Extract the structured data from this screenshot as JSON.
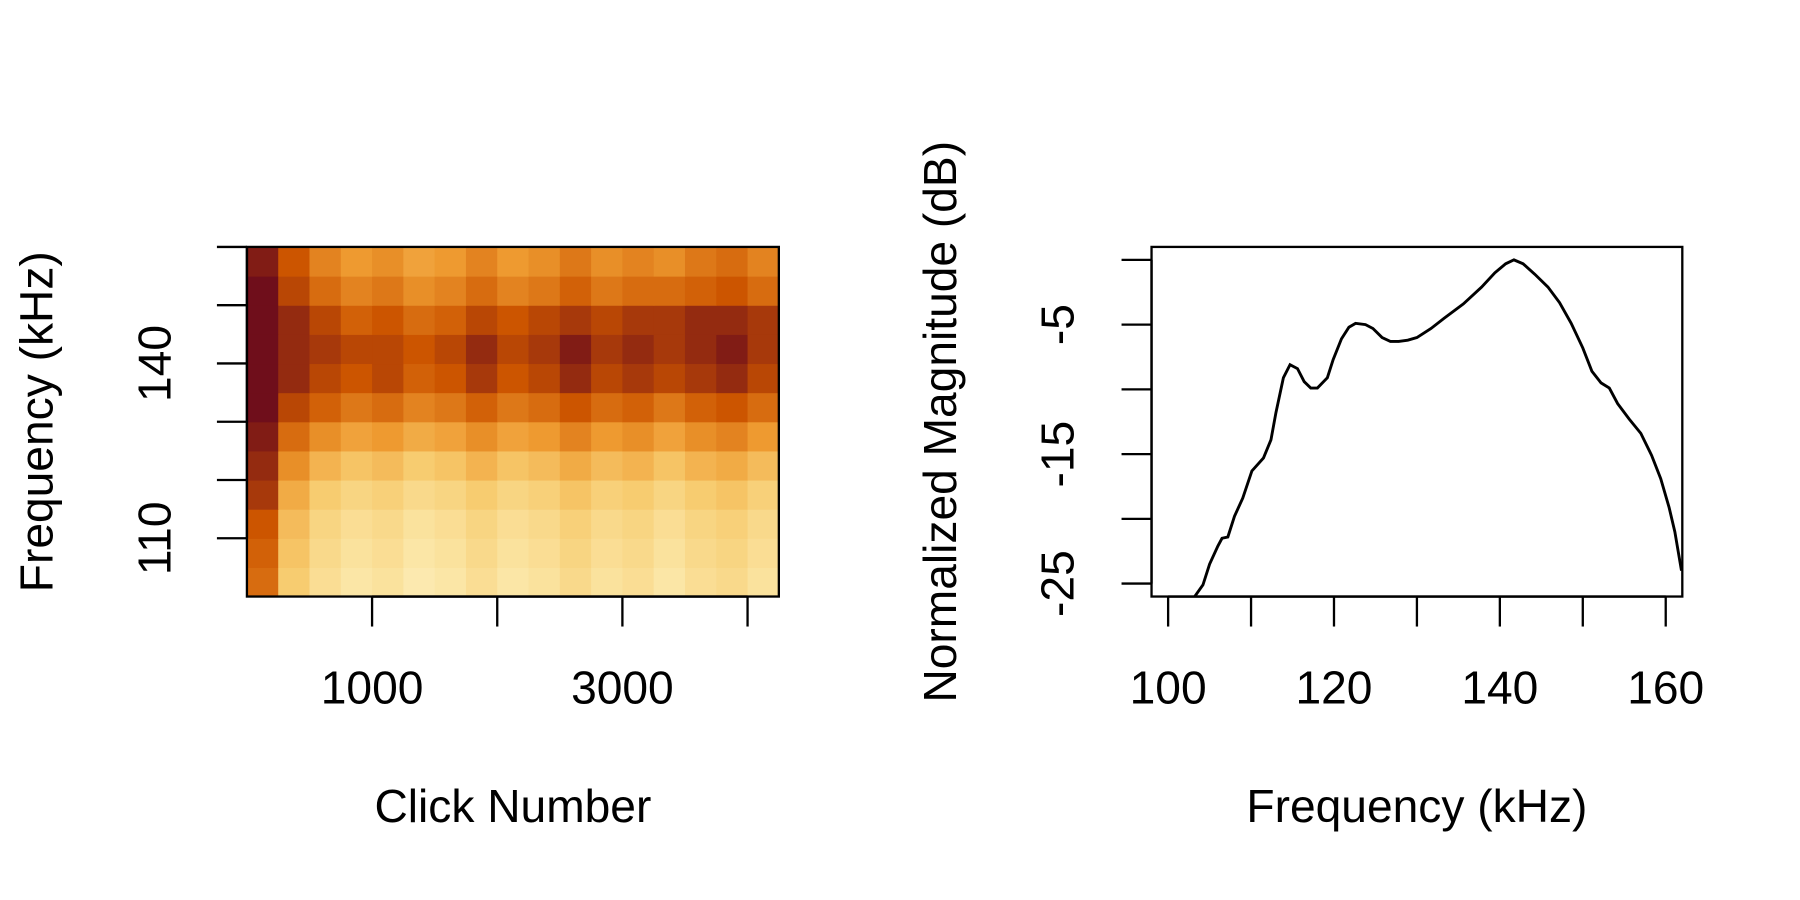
{
  "chart_data": [
    {
      "type": "heatmap",
      "xlabel": "Click Number",
      "ylabel": "Frequency (kHz)",
      "xbins": [
        0,
        250,
        500,
        750,
        1000,
        1250,
        1500,
        1750,
        2000,
        2250,
        2500,
        2750,
        3000,
        3250,
        3500,
        3750,
        4000,
        4250
      ],
      "ybins": [
        100,
        105,
        110,
        115,
        120,
        125,
        130,
        135,
        140,
        145,
        150,
        155,
        160
      ],
      "z": [
        [
          -8,
          -18,
          -22,
          -24,
          -23,
          -25,
          -24,
          -22,
          -24,
          -23,
          -21,
          -23,
          -22,
          -24,
          -22,
          -21,
          -23
        ],
        [
          -7,
          -17,
          -21,
          -23,
          -22,
          -24,
          -23,
          -21,
          -23,
          -22,
          -20,
          -22,
          -21,
          -23,
          -21,
          -20,
          -22
        ],
        [
          -6,
          -16,
          -20,
          -22,
          -21,
          -23,
          -22,
          -20,
          -22,
          -21,
          -19,
          -21,
          -20,
          -22,
          -20,
          -19,
          -21
        ],
        [
          -4,
          -14,
          -18,
          -20,
          -19,
          -21,
          -20,
          -18,
          -20,
          -19,
          -17,
          -19,
          -18,
          -20,
          -18,
          -17,
          -19
        ],
        [
          -3,
          -11,
          -15,
          -17,
          -16,
          -18,
          -17,
          -15,
          -17,
          -16,
          -14,
          -16,
          -15,
          -17,
          -15,
          -14,
          -16
        ],
        [
          -2,
          -8,
          -11,
          -13,
          -12,
          -14,
          -13,
          -11,
          -13,
          -12,
          -10,
          -12,
          -11,
          -13,
          -11,
          -10,
          -12
        ],
        [
          -1,
          -5,
          -7,
          -9,
          -8,
          -10,
          -9,
          -7,
          -9,
          -8,
          -6,
          -8,
          -7,
          -9,
          -7,
          -6,
          -8
        ],
        [
          -1,
          -3,
          -5,
          -6,
          -5,
          -7,
          -6,
          -4,
          -6,
          -5,
          -3,
          -5,
          -4,
          -5,
          -4,
          -3,
          -5
        ],
        [
          -1,
          -3,
          -4,
          -5,
          -5,
          -6,
          -5,
          -3,
          -5,
          -4,
          -2,
          -4,
          -3,
          -4,
          -3,
          -2,
          -4
        ],
        [
          -1,
          -3,
          -5,
          -7,
          -6,
          -8,
          -7,
          -5,
          -6,
          -5,
          -4,
          -5,
          -4,
          -4,
          -3,
          -3,
          -4
        ],
        [
          -1,
          -5,
          -8,
          -10,
          -9,
          -11,
          -10,
          -8,
          -10,
          -9,
          -7,
          -9,
          -8,
          -8,
          -7,
          -6,
          -8
        ],
        [
          -2,
          -6,
          -10,
          -12,
          -11,
          -13,
          -12,
          -10,
          -12,
          -11,
          -9,
          -11,
          -10,
          -11,
          -9,
          -8,
          -10
        ]
      ],
      "zlim": [
        -30,
        0
      ],
      "colorscale": [
        "#fff8dc",
        "#fbe6a6",
        "#f7cc70",
        "#ee9a30",
        "#cc5500",
        "#5c0020"
      ],
      "xlim": [
        0,
        4250
      ],
      "ylim": [
        100,
        160
      ],
      "xticks": [
        1000,
        {
          "value": 2000,
          "label": null
        },
        3000,
        {
          "value": 4000,
          "label": null
        }
      ],
      "yticks": [
        110,
        {
          "value": 120,
          "label": null
        },
        {
          "value": 130,
          "label": null
        },
        140,
        {
          "value": 150,
          "label": null
        },
        {
          "value": 160,
          "label": null
        }
      ]
    },
    {
      "type": "line",
      "xlabel": "Frequency (kHz)",
      "ylabel": "Normalized Magnitude (dB)",
      "x": [
        103.2,
        104.2,
        105,
        106,
        106.5,
        107.2,
        108,
        109,
        110.1,
        111.5,
        112.4,
        113,
        113.9,
        114.7,
        115.6,
        116.4,
        117.2,
        118,
        119.2,
        119.9,
        120.9,
        121.8,
        122.6,
        123.8,
        124.7,
        125.8,
        126.8,
        127.8,
        128.9,
        130,
        131.7,
        133.3,
        135.6,
        137.8,
        139.4,
        140.7,
        141.7,
        142.8,
        144.2,
        145.8,
        147.2,
        148.6,
        150,
        151.1,
        152.2,
        153.2,
        154.2,
        155.6,
        157,
        158.3,
        159.4,
        160.4,
        161.1,
        161.9
      ],
      "values": [
        -26,
        -25.1,
        -23.5,
        -22.1,
        -21.5,
        -21.4,
        -19.8,
        -18.4,
        -16.3,
        -15.3,
        -13.9,
        -11.8,
        -9.1,
        -8.1,
        -8.4,
        -9.4,
        -9.9,
        -9.9,
        -9.1,
        -7.7,
        -6.1,
        -5.2,
        -4.9,
        -5.0,
        -5.3,
        -6.0,
        -6.3,
        -6.3,
        -6.2,
        -6.0,
        -5.3,
        -4.5,
        -3.4,
        -2.1,
        -1.0,
        -0.3,
        0,
        -0.3,
        -1.1,
        -2.1,
        -3.3,
        -4.9,
        -6.8,
        -8.6,
        -9.5,
        -9.9,
        -11.1,
        -12.3,
        -13.4,
        -15.1,
        -16.9,
        -19.1,
        -21,
        -24
      ],
      "color": "#000000",
      "xlim": [
        98,
        162
      ],
      "ylim": [
        -26,
        1
      ],
      "xticks": [
        100,
        {
          "value": 110,
          "label": null
        },
        120,
        {
          "value": 130,
          "label": null
        },
        140,
        {
          "value": 150,
          "label": null
        },
        160
      ],
      "yticks": [
        {
          "value": 0,
          "label": null
        },
        -5,
        {
          "value": -10,
          "label": null
        },
        -15,
        {
          "value": -20,
          "label": null
        },
        -25
      ]
    }
  ]
}
